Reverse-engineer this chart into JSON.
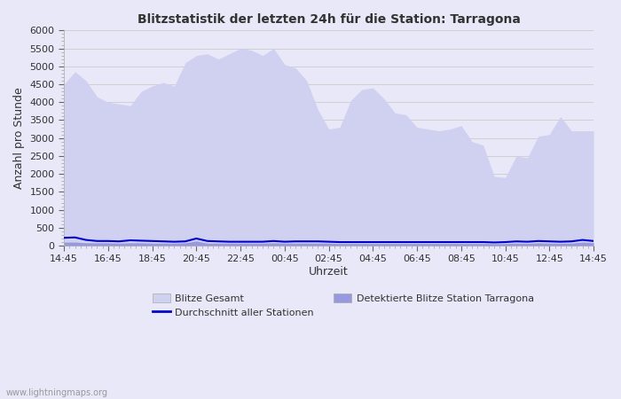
{
  "title": "Blitzstatistik der letzten 24h für die Station: Tarragona",
  "xlabel": "Uhrzeit",
  "ylabel": "Anzahl pro Stunde",
  "ylim": [
    0,
    6000
  ],
  "yticks": [
    0,
    500,
    1000,
    1500,
    2000,
    2500,
    3000,
    3500,
    4000,
    4500,
    5000,
    5500,
    6000
  ],
  "xtick_labels": [
    "14:45",
    "16:45",
    "18:45",
    "20:45",
    "22:45",
    "00:45",
    "02:45",
    "04:45",
    "06:45",
    "08:45",
    "10:45",
    "12:45",
    "14:45"
  ],
  "bg_color": "#e8e8f8",
  "fill_color_gesamt": "#d0d0f0",
  "fill_color_station": "#9898e0",
  "line_color_avg": "#0000cc",
  "watermark": "www.lightningmaps.org",
  "x_values": [
    0,
    1,
    2,
    3,
    4,
    5,
    6,
    7,
    8,
    9,
    10,
    11,
    12,
    13,
    14,
    15,
    16,
    17,
    18,
    19,
    20,
    21,
    22,
    23,
    24,
    25,
    26,
    27,
    28,
    29,
    30,
    31,
    32,
    33,
    34,
    35,
    36,
    37,
    38,
    39,
    40,
    41,
    42,
    43,
    44,
    45,
    46,
    47,
    48
  ],
  "gesamt": [
    4500,
    4850,
    4600,
    4150,
    4000,
    3950,
    3900,
    4300,
    4450,
    4550,
    4450,
    5100,
    5300,
    5350,
    5200,
    5350,
    5500,
    5450,
    5300,
    5500,
    5050,
    4950,
    4600,
    3800,
    3250,
    3300,
    4050,
    4350,
    4400,
    4100,
    3700,
    3650,
    3300,
    3250,
    3200,
    3250,
    3350,
    2900,
    2800,
    1930,
    1900,
    2500,
    2450,
    3050,
    3100,
    3600,
    3200,
    3200,
    3200
  ],
  "station": [
    100,
    100,
    80,
    80,
    80,
    70,
    80,
    80,
    70,
    70,
    70,
    80,
    130,
    70,
    70,
    70,
    70,
    70,
    70,
    80,
    70,
    70,
    70,
    70,
    70,
    60,
    60,
    60,
    60,
    60,
    60,
    60,
    60,
    60,
    60,
    60,
    60,
    60,
    60,
    55,
    60,
    70,
    65,
    80,
    70,
    65,
    70,
    100,
    80
  ],
  "avg": [
    220,
    230,
    160,
    130,
    130,
    120,
    150,
    140,
    130,
    120,
    110,
    120,
    200,
    130,
    120,
    110,
    110,
    110,
    110,
    130,
    110,
    120,
    120,
    120,
    110,
    100,
    100,
    100,
    100,
    100,
    100,
    100,
    100,
    100,
    100,
    100,
    100,
    100,
    100,
    90,
    100,
    120,
    110,
    130,
    120,
    110,
    120,
    160,
    130
  ]
}
